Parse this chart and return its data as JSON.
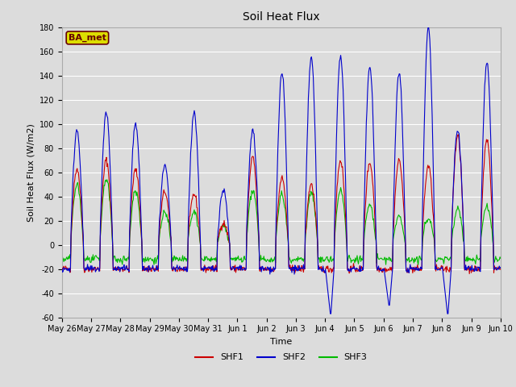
{
  "title": "Soil Heat Flux",
  "xlabel": "Time",
  "ylabel": "Soil Heat Flux (W/m2)",
  "ylim": [
    -60,
    180
  ],
  "yticks": [
    -60,
    -40,
    -20,
    0,
    20,
    40,
    60,
    80,
    100,
    120,
    140,
    160,
    180
  ],
  "xtick_labels": [
    "May 26",
    "May 27",
    "May 28",
    "May 29",
    "May 30",
    "May 31",
    "Jun 1",
    "Jun 2",
    "Jun 3",
    "Jun 4",
    "Jun 5",
    "Jun 6",
    "Jun 7",
    "Jun 8",
    "Jun 9",
    "Jun 10"
  ],
  "line_colors": {
    "SHF1": "#cc0000",
    "SHF2": "#0000cc",
    "SHF3": "#00bb00"
  },
  "line_widths": {
    "SHF1": 0.8,
    "SHF2": 0.8,
    "SHF3": 0.8
  },
  "fig_bg": "#dcdcdc",
  "plot_bg": "#dcdcdc",
  "grid_color": "#ffffff",
  "annotation_text": "BA_met",
  "annotation_color": "#660000",
  "annotation_bg": "#dddd00",
  "n_days": 15,
  "points_per_day": 48,
  "shf2_peaks": [
    95,
    110,
    100,
    65,
    110,
    45,
    95,
    142,
    155,
    157,
    147,
    142,
    180,
    95,
    150
  ],
  "shf1_peaks": [
    63,
    70,
    62,
    44,
    42,
    18,
    72,
    55,
    50,
    70,
    68,
    70,
    65,
    90,
    87
  ],
  "shf3_peaks": [
    50,
    55,
    45,
    27,
    27,
    15,
    45,
    42,
    43,
    45,
    33,
    23,
    22,
    30,
    32
  ],
  "shf1_night": -20,
  "shf2_night": -20,
  "shf3_night": -12
}
